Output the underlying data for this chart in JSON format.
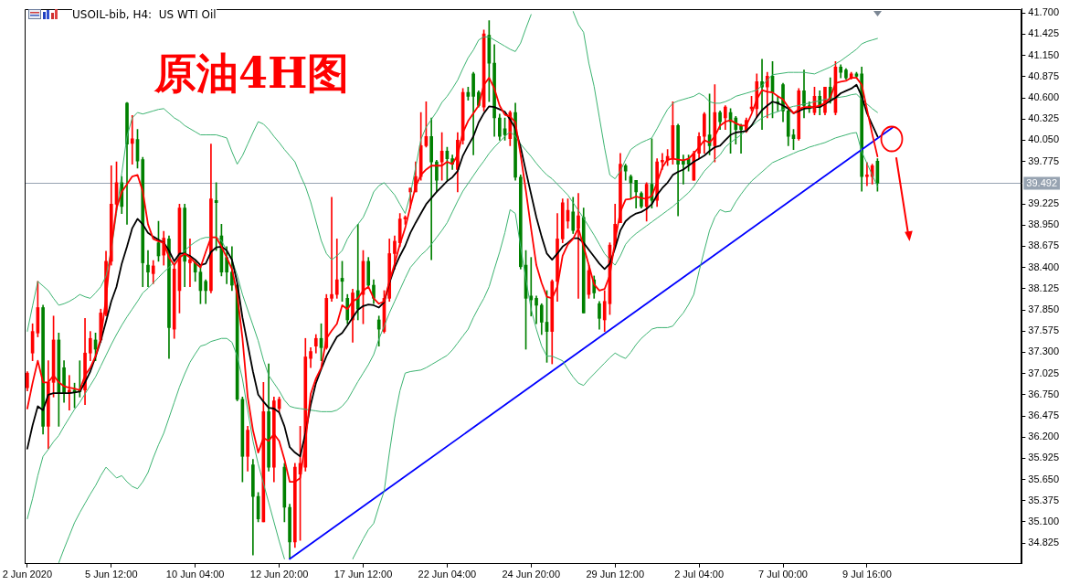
{
  "chart_data": {
    "type": "candlestick",
    "title": "原油4H图",
    "subtitle": "USOIL-bib, H4:  US WTI Oil",
    "categories": [
      "2 Jun 2020",
      null,
      null,
      null,
      null,
      null,
      null,
      null,
      null,
      null,
      null,
      null,
      null,
      null,
      null,
      null,
      "5 Jun 12:00",
      null,
      null,
      null,
      null,
      null,
      null,
      null,
      null,
      null,
      null,
      null,
      null,
      null,
      null,
      null,
      "10 Jun 04:00",
      null,
      null,
      null,
      null,
      null,
      null,
      null,
      null,
      null,
      null,
      null,
      null,
      null,
      null,
      null,
      "12 Jun 20:00",
      null,
      null,
      null,
      null,
      null,
      null,
      null,
      null,
      null,
      null,
      null,
      null,
      null,
      null,
      null,
      "17 Jun 12:00",
      null,
      null,
      null,
      null,
      null,
      null,
      null,
      null,
      null,
      null,
      null,
      null,
      null,
      null,
      null,
      "22 Jun 04:00",
      null,
      null,
      null,
      null,
      null,
      null,
      null,
      null,
      null,
      null,
      null,
      null,
      null,
      null,
      null,
      "24 Jun 20:00",
      null,
      null,
      null,
      null,
      null,
      null,
      null,
      null,
      null,
      null,
      null,
      null,
      null,
      null,
      null,
      "29 Jun 12:00",
      null,
      null,
      null,
      null,
      null,
      null,
      null,
      null,
      null,
      null,
      null,
      null,
      null,
      null,
      null,
      "2 Jul 04:00",
      null,
      null,
      null,
      null,
      null,
      null,
      null,
      null,
      null,
      null,
      null,
      null,
      null,
      null,
      null,
      "7 Jul 00:00",
      null,
      null,
      null,
      null,
      null,
      null,
      null,
      null,
      null,
      null,
      null,
      null,
      null,
      null,
      null,
      "9 Jul 16:00",
      null,
      null,
      null,
      null,
      null,
      null,
      null,
      null,
      null,
      null,
      null,
      null,
      null,
      null,
      null,
      null,
      null,
      null,
      null,
      null,
      null,
      null,
      null,
      null,
      null,
      null,
      null,
      null,
      null
    ],
    "ohlc": [
      [
        36.84,
        37.05,
        36.8,
        37.03
      ],
      [
        37.29,
        37.67,
        37.19,
        37.57
      ],
      [
        37.55,
        38.22,
        37.5,
        37.88
      ],
      [
        37.88,
        37.91,
        36.24,
        36.34
      ],
      [
        36.34,
        37.19,
        36.05,
        36.91
      ],
      [
        36.91,
        37.77,
        36.72,
        37.46
      ],
      [
        37.46,
        37.55,
        36.34,
        36.77
      ],
      [
        37.1,
        37.19,
        36.65,
        36.77
      ],
      [
        36.77,
        37.0,
        36.55,
        36.81
      ],
      [
        36.81,
        36.9,
        36.58,
        36.78
      ],
      [
        36.81,
        37.19,
        36.72,
        36.79
      ],
      [
        36.81,
        37.74,
        36.62,
        37.29
      ],
      [
        37.29,
        37.57,
        37.19,
        37.48
      ],
      [
        37.46,
        37.55,
        37.19,
        37.34
      ],
      [
        37.46,
        37.86,
        37.43,
        37.81
      ],
      [
        37.79,
        38.61,
        37.77,
        38.48
      ],
      [
        38.48,
        39.72,
        38.43,
        39.22
      ],
      [
        39.22,
        39.77,
        39.15,
        39.5
      ],
      [
        39.5,
        39.58,
        39.1,
        39.19
      ],
      [
        40.53,
        40.54,
        38.96,
        40.0
      ],
      [
        40.01,
        40.37,
        39.74,
        40.07
      ],
      [
        40.06,
        40.19,
        39.69,
        39.78
      ],
      [
        39.8,
        39.83,
        38.15,
        38.46
      ],
      [
        38.43,
        38.62,
        38.15,
        38.34
      ],
      [
        38.32,
        38.49,
        38.19,
        38.42
      ],
      [
        38.72,
        39.0,
        38.48,
        38.55
      ],
      [
        38.56,
        38.87,
        38.43,
        38.78
      ],
      [
        38.77,
        38.81,
        37.22,
        37.62
      ],
      [
        37.6,
        38.43,
        37.48,
        38.38
      ],
      [
        38.1,
        39.22,
        37.81,
        39.17
      ],
      [
        39.17,
        39.22,
        38.15,
        38.48
      ],
      [
        38.46,
        38.77,
        38.15,
        38.5
      ],
      [
        38.46,
        38.48,
        38.22,
        38.34
      ],
      [
        38.34,
        38.43,
        37.93,
        38.1
      ],
      [
        38.22,
        38.24,
        37.93,
        38.1
      ],
      [
        38.1,
        40.0,
        38.07,
        39.29
      ],
      [
        39.27,
        39.5,
        38.62,
        39.24
      ],
      [
        38.81,
        38.96,
        38.29,
        38.34
      ],
      [
        38.53,
        38.67,
        38.19,
        38.34
      ],
      [
        38.34,
        38.67,
        38.1,
        38.17
      ],
      [
        38.17,
        38.19,
        36.67,
        36.69
      ],
      [
        36.69,
        36.72,
        35.62,
        35.95
      ],
      [
        35.95,
        36.34,
        35.76,
        36.29
      ],
      [
        35.84,
        35.91,
        34.67,
        35.43
      ],
      [
        35.43,
        35.48,
        35.1,
        35.14
      ],
      [
        35.1,
        36.91,
        35.1,
        36.53
      ],
      [
        36.53,
        37.15,
        35.76,
        35.81
      ],
      [
        35.81,
        36.72,
        35.62,
        36.67
      ],
      [
        36.57,
        36.72,
        36.53,
        36.69
      ],
      [
        35.81,
        35.86,
        35.1,
        35.29
      ],
      [
        35.29,
        35.33,
        34.62,
        34.84
      ],
      [
        34.84,
        35.86,
        34.77,
        35.81
      ],
      [
        35.72,
        36.34,
        34.86,
        35.86
      ],
      [
        35.81,
        37.48,
        35.76,
        37.24
      ],
      [
        37.22,
        37.36,
        37.1,
        37.31
      ],
      [
        37.38,
        37.53,
        37.29,
        37.48
      ],
      [
        37.48,
        37.67,
        37.19,
        37.36
      ],
      [
        37.36,
        38.05,
        37.34,
        38.0
      ],
      [
        38.0,
        39.31,
        37.96,
        38.05
      ],
      [
        38.05,
        38.77,
        38.0,
        38.24
      ],
      [
        38.26,
        38.48,
        37.96,
        38.22
      ],
      [
        38.0,
        38.05,
        37.67,
        37.72
      ],
      [
        37.72,
        38.12,
        37.43,
        38.07
      ],
      [
        38.1,
        38.96,
        37.72,
        37.86
      ],
      [
        38.05,
        38.62,
        37.67,
        38.48
      ],
      [
        38.48,
        38.53,
        38.15,
        38.17
      ],
      [
        38.17,
        38.24,
        37.93,
        38.0
      ],
      [
        37.72,
        37.77,
        37.38,
        37.6
      ],
      [
        37.57,
        38.1,
        37.55,
        38.0
      ],
      [
        38.0,
        38.77,
        37.96,
        38.58
      ],
      [
        38.58,
        38.81,
        38.38,
        38.74
      ],
      [
        38.72,
        39.1,
        38.67,
        39.03
      ],
      [
        39.03,
        39.07,
        38.96,
        39.05
      ],
      [
        39.38,
        39.43,
        39.17,
        39.43
      ],
      [
        39.38,
        39.77,
        39.38,
        39.58
      ],
      [
        39.58,
        40.41,
        39.53,
        39.98
      ],
      [
        39.98,
        40.55,
        39.96,
        40.1
      ],
      [
        40.1,
        40.34,
        38.5,
        39.77
      ],
      [
        39.77,
        39.79,
        39.38,
        39.53
      ],
      [
        39.77,
        40.15,
        39.53,
        39.91
      ],
      [
        39.91,
        39.96,
        39.53,
        39.81
      ],
      [
        39.81,
        39.86,
        39.67,
        39.74
      ],
      [
        39.67,
        40.15,
        39.38,
        40.05
      ],
      [
        40.05,
        40.72,
        40.0,
        40.67
      ],
      [
        40.67,
        40.74,
        40.57,
        40.62
      ],
      [
        40.91,
        40.93,
        39.86,
        40.62
      ],
      [
        40.67,
        40.69,
        40.48,
        40.5
      ],
      [
        40.48,
        41.48,
        40.43,
        41.43
      ],
      [
        41.41,
        41.6,
        40.55,
        41.05
      ],
      [
        41.05,
        41.29,
        40.1,
        40.34
      ],
      [
        40.34,
        40.39,
        40.05,
        40.1
      ],
      [
        40.2,
        40.34,
        40.05,
        40.12
      ],
      [
        40.07,
        40.43,
        39.98,
        40.41
      ],
      [
        40.41,
        40.53,
        39.53,
        39.57
      ],
      [
        39.57,
        39.6,
        38.38,
        38.41
      ],
      [
        38.43,
        38.62,
        37.34,
        38.0
      ],
      [
        38.03,
        38.53,
        37.77,
        37.98
      ],
      [
        38.0,
        38.03,
        37.67,
        37.91
      ],
      [
        37.91,
        37.93,
        37.53,
        37.69
      ],
      [
        37.69,
        38.1,
        37.17,
        37.57
      ],
      [
        37.57,
        38.24,
        37.15,
        38.22
      ],
      [
        38.22,
        39.1,
        37.96,
        38.77
      ],
      [
        38.77,
        39.29,
        38.72,
        39.24
      ],
      [
        39.0,
        39.29,
        38.91,
        39.14
      ],
      [
        39.12,
        39.31,
        38.84,
        38.88
      ],
      [
        38.91,
        39.36,
        38.0,
        39.07
      ],
      [
        39.05,
        39.17,
        37.81,
        37.81
      ],
      [
        38.05,
        38.43,
        38.0,
        38.36
      ],
      [
        38.24,
        38.29,
        38.0,
        38.07
      ],
      [
        37.93,
        37.96,
        37.6,
        37.74
      ],
      [
        37.72,
        38.1,
        37.57,
        37.96
      ],
      [
        37.93,
        38.72,
        37.79,
        38.69
      ],
      [
        38.69,
        39.22,
        38.65,
        38.96
      ],
      [
        38.98,
        39.88,
        38.98,
        39.74
      ],
      [
        39.72,
        39.74,
        39.53,
        39.65
      ],
      [
        39.58,
        39.6,
        39.29,
        39.5
      ],
      [
        39.53,
        39.53,
        39.17,
        39.38
      ],
      [
        39.36,
        39.38,
        39.17,
        39.19
      ],
      [
        39.19,
        39.5,
        39.0,
        39.48
      ],
      [
        39.48,
        40.07,
        39.17,
        39.27
      ],
      [
        39.27,
        39.81,
        39.19,
        39.77
      ],
      [
        39.77,
        39.88,
        39.67,
        39.79
      ],
      [
        39.79,
        39.93,
        39.72,
        39.84
      ],
      [
        39.81,
        40.55,
        39.74,
        40.24
      ],
      [
        40.24,
        40.26,
        39.07,
        39.74
      ],
      [
        39.79,
        39.86,
        39.48,
        39.74
      ],
      [
        39.81,
        39.86,
        39.65,
        39.74
      ],
      [
        39.53,
        39.91,
        39.53,
        39.88
      ],
      [
        39.88,
        40.15,
        39.81,
        40.1
      ],
      [
        40.1,
        40.41,
        39.88,
        40.39
      ],
      [
        40.12,
        40.65,
        39.86,
        39.98
      ],
      [
        39.98,
        40.77,
        39.77,
        40.41
      ],
      [
        40.41,
        40.43,
        40.19,
        40.29
      ],
      [
        40.34,
        40.5,
        40.19,
        40.48
      ],
      [
        40.41,
        40.46,
        39.88,
        40.29
      ],
      [
        40.34,
        40.36,
        40.0,
        40.19
      ],
      [
        40.24,
        40.26,
        39.88,
        40.19
      ],
      [
        40.17,
        40.34,
        40.15,
        40.31
      ],
      [
        40.46,
        40.62,
        40.43,
        40.48
      ],
      [
        40.46,
        40.91,
        40.34,
        40.81
      ],
      [
        40.81,
        41.1,
        40.19,
        40.74
      ],
      [
        40.74,
        40.93,
        40.34,
        40.88
      ],
      [
        40.88,
        41.07,
        40.34,
        40.67
      ],
      [
        40.55,
        40.62,
        40.43,
        40.53
      ],
      [
        40.77,
        40.79,
        40.29,
        40.43
      ],
      [
        40.43,
        40.48,
        39.98,
        40.1
      ],
      [
        40.12,
        40.19,
        39.93,
        40.07
      ],
      [
        40.07,
        40.72,
        40.05,
        40.69
      ],
      [
        40.69,
        40.96,
        40.34,
        40.5
      ],
      [
        40.5,
        40.55,
        40.41,
        40.46
      ],
      [
        40.41,
        40.74,
        40.38,
        40.62
      ],
      [
        40.62,
        40.69,
        40.38,
        40.48
      ],
      [
        40.41,
        40.74,
        40.38,
        40.74
      ],
      [
        40.74,
        40.86,
        40.53,
        40.58
      ],
      [
        40.41,
        41.07,
        40.38,
        41.0
      ],
      [
        41.0,
        41.03,
        40.86,
        40.93
      ],
      [
        40.96,
        40.98,
        40.84,
        40.86
      ],
      [
        40.86,
        40.93,
        40.84,
        40.91
      ],
      [
        40.91,
        40.93,
        40.86,
        40.88
      ],
      [
        40.91,
        41.0,
        39.39,
        39.58
      ],
      [
        39.58,
        39.76,
        39.46,
        39.6
      ],
      [
        39.58,
        39.74,
        39.48,
        39.72
      ],
      [
        39.78,
        39.81,
        39.39,
        39.492
      ],
      null,
      null,
      null,
      null,
      null,
      null,
      null,
      null,
      null,
      null,
      null,
      null,
      null,
      null,
      null,
      null,
      null,
      null,
      null,
      null,
      null,
      null,
      null,
      null,
      null,
      null,
      null
    ],
    "colors": [
      "#ff0000",
      "#ff0000",
      "#ff0000",
      "#008000",
      "#ff0000",
      "#ff0000",
      "#008000",
      "#008000",
      "#ff0000",
      "#008000",
      "#008000",
      "#ff0000",
      "#ff0000",
      "#008000",
      "#ff0000",
      "#ff0000",
      "#ff0000",
      "#ff0000",
      "#008000",
      "#008000",
      "#ff0000",
      "#008000",
      "#008000",
      "#008000",
      "#ff0000",
      "#008000",
      "#ff0000",
      "#008000",
      "#ff0000",
      "#ff0000",
      "#008000",
      "#ff0000",
      "#008000",
      "#008000",
      "#008000",
      "#ff0000",
      "#008000",
      "#008000",
      "#008000",
      "#008000",
      "#008000",
      "#008000",
      "#ff0000",
      "#008000",
      "#008000",
      "#ff0000",
      "#008000",
      "#ff0000",
      "#ff0000",
      "#008000",
      "#008000",
      "#ff0000",
      "#ff0000",
      "#ff0000",
      "#ff0000",
      "#ff0000",
      "#008000",
      "#ff0000",
      "#ff0000",
      "#ff0000",
      "#008000",
      "#008000",
      "#ff0000",
      "#008000",
      "#ff0000",
      "#008000",
      "#008000",
      "#008000",
      "#ff0000",
      "#ff0000",
      "#ff0000",
      "#ff0000",
      "#ff0000",
      "#ff0000",
      "#ff0000",
      "#ff0000",
      "#ff0000",
      "#008000",
      "#008000",
      "#ff0000",
      "#008000",
      "#008000",
      "#ff0000",
      "#ff0000",
      "#008000",
      "#008000",
      "#008000",
      "#ff0000",
      "#008000",
      "#008000",
      "#008000",
      "#008000",
      "#ff0000",
      "#008000",
      "#008000",
      "#008000",
      "#008000",
      "#008000",
      "#008000",
      "#008000",
      "#ff0000",
      "#ff0000",
      "#ff0000",
      "#ff0000",
      "#008000",
      "#ff0000",
      "#008000",
      "#ff0000",
      "#008000",
      "#008000",
      "#ff0000",
      "#ff0000",
      "#ff0000",
      "#ff0000",
      "#008000",
      "#008000",
      "#008000",
      "#008000",
      "#ff0000",
      "#008000",
      "#ff0000",
      "#ff0000",
      "#ff0000",
      "#ff0000",
      "#008000",
      "#008000",
      "#008000",
      "#ff0000",
      "#ff0000",
      "#ff0000",
      "#008000",
      "#ff0000",
      "#008000",
      "#ff0000",
      "#008000",
      "#008000",
      "#008000",
      "#ff0000",
      "#ff0000",
      "#ff0000",
      "#008000",
      "#ff0000",
      "#008000",
      "#008000",
      "#008000",
      "#008000",
      "#008000",
      "#ff0000",
      "#008000",
      "#008000",
      "#ff0000",
      "#008000",
      "#ff0000",
      "#008000",
      "#ff0000",
      "#008000",
      "#008000",
      "#ff0000",
      "#008000",
      "#008000",
      "#ff0000",
      "#ff0000",
      "#008000",
      null,
      null,
      null,
      null,
      null,
      null,
      null,
      null,
      null,
      null,
      null,
      null,
      null,
      null,
      null,
      null,
      null,
      null,
      null,
      null,
      null,
      null,
      null,
      null,
      null,
      null,
      null
    ],
    "series": [
      {
        "type": "line",
        "color": "#ff0000",
        "values": [
          36.57,
          36.9,
          37.19,
          36.91,
          36.91,
          37.0,
          36.91,
          36.86,
          36.84,
          36.83,
          36.81,
          37.0,
          37.1,
          37.25,
          37.48,
          38.0,
          38.67,
          39.17,
          39.38,
          39.48,
          39.58,
          39.6,
          39.39,
          38.96,
          38.77,
          38.74,
          38.72,
          38.53,
          38.43,
          38.53,
          38.58,
          38.53,
          38.46,
          38.4,
          38.6,
          38.79,
          38.79,
          38.67,
          38.53,
          38.38,
          38.05,
          37.48,
          36.72,
          36.29,
          36.0,
          36.19,
          36.15,
          36.24,
          36.15,
          35.91,
          35.62,
          35.62,
          35.67,
          36.15,
          36.76,
          36.96,
          37.1,
          37.48,
          37.58,
          37.67,
          37.91,
          37.86,
          37.96,
          38.0,
          38.1,
          38.15,
          38.0,
          37.93,
          37.96,
          38.22,
          38.45,
          38.7,
          38.91,
          39.19,
          39.45,
          39.6,
          39.67,
          39.72,
          39.72,
          39.72,
          39.77,
          39.74,
          39.86,
          40.15,
          40.3,
          40.4,
          40.5,
          40.77,
          40.86,
          40.72,
          40.5,
          40.38,
          40.36,
          40.28,
          39.86,
          39.4,
          38.9,
          38.43,
          38.2,
          38.02,
          38.0,
          38.15,
          38.55,
          38.7,
          38.77,
          38.91,
          38.67,
          38.43,
          38.18,
          38.1,
          38.12,
          38.3,
          38.75,
          39.12,
          39.28,
          39.29,
          39.32,
          39.3,
          39.29,
          39.33,
          39.5,
          39.7,
          39.8,
          39.81,
          39.8,
          39.79,
          39.81,
          39.88,
          39.96,
          40.05,
          40.02,
          40.1,
          40.24,
          40.29,
          40.31,
          40.27,
          40.24,
          40.24,
          40.39,
          40.58,
          40.7,
          40.68,
          40.67,
          40.62,
          40.58,
          40.48,
          40.4,
          40.45,
          40.48,
          40.48,
          40.48,
          40.5,
          40.53,
          40.6,
          40.79,
          40.81,
          40.82,
          40.86,
          40.86,
          40.77,
          40.45,
          40.13,
          39.84,
          null,
          null,
          null,
          null,
          null,
          null,
          null,
          null,
          null,
          null,
          null,
          null,
          null,
          null,
          null,
          null,
          null,
          null,
          null,
          null,
          null,
          null,
          null,
          null,
          null,
          null,
          null
        ]
      },
      {
        "type": "line",
        "color": "#000000",
        "values": [
          36.05,
          36.35,
          36.6,
          36.55,
          36.75,
          36.77,
          36.77,
          36.77,
          36.77,
          36.78,
          36.79,
          36.91,
          37.05,
          37.24,
          37.45,
          37.7,
          37.96,
          38.15,
          38.45,
          38.67,
          38.91,
          39.03,
          38.96,
          38.85,
          38.8,
          38.76,
          38.72,
          38.62,
          38.48,
          38.58,
          38.58,
          38.55,
          38.5,
          38.43,
          38.45,
          38.6,
          38.66,
          38.67,
          38.62,
          38.5,
          38.2,
          37.75,
          37.4,
          37.05,
          36.75,
          36.66,
          36.58,
          36.57,
          36.52,
          36.34,
          36.07,
          36.0,
          35.95,
          36.25,
          36.62,
          36.9,
          37.08,
          37.25,
          37.38,
          37.5,
          37.55,
          37.65,
          37.75,
          37.85,
          37.9,
          37.92,
          37.91,
          37.88,
          37.95,
          38.2,
          38.4,
          38.55,
          38.68,
          38.85,
          38.98,
          39.1,
          39.22,
          39.3,
          39.38,
          39.45,
          39.52,
          39.57,
          39.65,
          39.85,
          39.98,
          40.1,
          40.28,
          40.4,
          40.49,
          40.48,
          40.45,
          40.42,
          40.32,
          40.2,
          39.96,
          39.65,
          39.35,
          39.05,
          38.8,
          38.58,
          38.5,
          38.58,
          38.67,
          38.72,
          38.78,
          38.78,
          38.72,
          38.63,
          38.54,
          38.45,
          38.38,
          38.45,
          38.65,
          38.88,
          39.0,
          39.06,
          39.1,
          39.12,
          39.16,
          39.22,
          39.34,
          39.43,
          39.5,
          39.6,
          39.64,
          39.67,
          39.72,
          39.77,
          39.81,
          39.85,
          39.91,
          39.96,
          39.98,
          40.05,
          40.12,
          40.15,
          40.16,
          40.17,
          40.24,
          40.35,
          40.44,
          40.5,
          40.55,
          40.53,
          40.5,
          40.46,
          40.4,
          40.43,
          40.46,
          40.47,
          40.48,
          40.48,
          40.52,
          40.56,
          40.6,
          40.66,
          40.69,
          40.72,
          40.77,
          40.62,
          40.4,
          40.25,
          40.1,
          null,
          null,
          null,
          null,
          null,
          null,
          null,
          null,
          null,
          null,
          null,
          null,
          null,
          null,
          null,
          null,
          null,
          null,
          null,
          null,
          null,
          null,
          null,
          null,
          null,
          null,
          null
        ]
      },
      {
        "type": "line",
        "color": "#3cb371",
        "values": [
          37.57,
          37.9,
          38.22,
          38.16,
          38.1,
          38.0,
          37.91,
          37.93,
          37.96,
          38.0,
          38.05,
          38.02,
          38.0,
          38.07,
          38.15,
          38.29,
          38.62,
          39.1,
          39.62,
          40.1,
          40.34,
          40.41,
          40.39,
          40.41,
          40.43,
          40.45,
          40.46,
          40.4,
          40.34,
          40.3,
          40.24,
          40.2,
          40.16,
          40.12,
          40.12,
          40.12,
          40.12,
          40.1,
          40.08,
          39.9,
          39.74,
          39.85,
          40.0,
          40.15,
          40.29,
          40.26,
          40.19,
          40.1,
          40.02,
          39.93,
          39.85,
          39.77,
          39.6,
          39.45,
          39.25,
          39.0,
          38.75,
          38.58,
          38.5,
          38.55,
          38.62,
          38.77,
          38.88,
          38.96,
          39.05,
          39.2,
          39.38,
          39.46,
          39.5,
          39.42,
          39.34,
          39.22,
          39.1,
          39.35,
          39.7,
          40.06,
          40.22,
          40.32,
          40.42,
          40.54,
          40.62,
          40.72,
          40.83,
          40.98,
          41.12,
          41.22,
          41.35,
          41.39,
          41.39,
          41.35,
          41.31,
          41.27,
          41.23,
          41.2,
          41.31,
          41.5,
          41.68,
          null,
          null,
          null,
          null,
          null,
          null,
          null,
          41.72,
          41.55,
          41.45,
          41.05,
          40.75,
          40.35,
          39.95,
          39.6,
          39.55,
          39.65,
          39.8,
          39.93,
          39.98,
          40.02,
          40.05,
          40.08,
          40.2,
          40.33,
          40.45,
          40.53,
          40.56,
          40.58,
          40.6,
          40.62,
          40.66,
          40.62,
          40.55,
          40.53,
          40.53,
          40.55,
          40.58,
          40.62,
          40.64,
          40.66,
          40.68,
          40.7,
          40.76,
          40.83,
          40.9,
          40.91,
          40.92,
          40.93,
          40.93,
          40.93,
          40.93,
          40.92,
          40.91,
          40.94,
          40.97,
          41.0,
          41.04,
          41.08,
          41.13,
          41.18,
          41.23,
          41.3,
          41.33,
          41.35,
          41.37,
          null,
          null,
          null,
          null,
          null,
          null,
          null,
          null,
          null,
          null,
          null,
          null,
          null,
          null,
          null,
          null,
          null,
          null,
          null,
          null,
          null,
          null,
          null,
          null,
          null,
          null,
          null
        ]
      },
      {
        "type": "line",
        "color": "#3cb371",
        "values": [
          35.14,
          35.4,
          35.7,
          35.95,
          36.04,
          36.14,
          36.22,
          36.34,
          36.45,
          36.56,
          36.65,
          36.76,
          36.87,
          36.98,
          37.12,
          37.26,
          37.4,
          37.53,
          37.65,
          37.76,
          37.86,
          37.96,
          38.07,
          38.13,
          38.2,
          38.27,
          38.34,
          38.4,
          38.47,
          38.55,
          38.62,
          38.68,
          38.73,
          38.77,
          38.79,
          38.79,
          38.79,
          38.75,
          38.62,
          38.5,
          38.3,
          38.05,
          37.85,
          37.65,
          37.45,
          37.2,
          37.0,
          36.9,
          36.8,
          36.68,
          36.6,
          36.58,
          36.57,
          36.56,
          36.55,
          36.54,
          36.53,
          36.53,
          36.53,
          36.55,
          36.6,
          36.68,
          36.8,
          36.92,
          37.03,
          37.14,
          37.27,
          37.47,
          37.64,
          37.81,
          37.96,
          38.11,
          38.26,
          38.4,
          38.48,
          38.56,
          38.62,
          38.7,
          38.79,
          38.88,
          38.98,
          39.12,
          39.26,
          39.39,
          39.49,
          39.59,
          39.69,
          39.78,
          39.88,
          39.96,
          40.03,
          40.1,
          40.16,
          40.1,
          40.0,
          39.92,
          39.84,
          39.75,
          39.67,
          39.6,
          39.55,
          39.48,
          39.41,
          39.34,
          39.24,
          39.14,
          39.04,
          38.93,
          38.82,
          38.7,
          38.58,
          38.5,
          38.43,
          38.55,
          38.7,
          38.78,
          38.84,
          38.89,
          38.94,
          38.99,
          39.04,
          39.09,
          39.14,
          39.19,
          39.25,
          39.31,
          39.37,
          39.45,
          39.55,
          39.65,
          39.72,
          39.8,
          39.86,
          39.96,
          40.02,
          40.07,
          40.12,
          40.18,
          40.23,
          40.29,
          40.34,
          40.37,
          40.4,
          40.42,
          40.45,
          40.47,
          40.49,
          40.5,
          40.52,
          40.53,
          40.55,
          40.56,
          40.58,
          40.59,
          40.6,
          40.61,
          40.62,
          40.64,
          40.65,
          40.58,
          40.52,
          40.46,
          40.41,
          null,
          null,
          null,
          null,
          null,
          null,
          null,
          null,
          null,
          null,
          null,
          null,
          null,
          null,
          null,
          null,
          null,
          null,
          null,
          null,
          null,
          null,
          null,
          null,
          null,
          null,
          null
        ]
      },
      {
        "type": "line",
        "color": "#3cb371",
        "values": [
          null,
          null,
          null,
          null,
          null,
          null,
          34.57,
          34.75,
          34.92,
          35.09,
          35.22,
          35.34,
          35.46,
          35.57,
          35.7,
          35.81,
          35.74,
          35.67,
          35.7,
          35.62,
          35.56,
          35.53,
          35.62,
          35.74,
          35.93,
          36.1,
          36.25,
          36.45,
          36.65,
          36.85,
          37.02,
          37.17,
          37.28,
          37.38,
          37.4,
          37.44,
          37.46,
          37.48,
          37.48,
          37.43,
          37.25,
          36.95,
          36.55,
          36.15,
          35.85,
          35.6,
          35.35,
          35.1,
          34.85,
          34.62,
          null,
          null,
          null,
          null,
          null,
          null,
          null,
          null,
          null,
          null,
          null,
          null,
          34.62,
          34.75,
          34.88,
          35.0,
          35.08,
          35.3,
          35.5,
          36.0,
          36.45,
          36.8,
          37.03,
          37.05,
          37.06,
          37.07,
          37.1,
          37.14,
          37.18,
          37.22,
          37.26,
          37.33,
          37.42,
          37.51,
          37.6,
          37.75,
          37.88,
          38.0,
          38.15,
          38.38,
          38.6,
          38.85,
          39.15,
          39.1,
          38.67,
          38.25,
          37.86,
          37.6,
          37.38,
          37.25,
          37.25,
          37.22,
          37.19,
          37.08,
          36.98,
          36.9,
          36.87,
          36.95,
          37.02,
          37.09,
          37.16,
          37.23,
          37.29,
          37.25,
          37.22,
          37.3,
          37.4,
          37.48,
          37.54,
          37.6,
          37.62,
          37.62,
          37.62,
          37.64,
          37.73,
          37.81,
          37.92,
          38.05,
          38.35,
          38.62,
          38.88,
          39.05,
          39.15,
          39.12,
          39.13,
          39.25,
          39.35,
          39.44,
          39.52,
          39.58,
          39.64,
          39.7,
          39.76,
          39.79,
          39.82,
          39.85,
          39.88,
          39.91,
          39.93,
          39.96,
          39.98,
          40.0,
          40.02,
          40.05,
          40.08,
          40.1,
          40.12,
          40.14,
          40.15,
          39.9,
          39.75,
          39.6,
          39.45,
          null,
          null,
          null,
          null,
          null,
          null,
          null,
          null,
          null,
          null,
          null,
          null,
          null,
          null,
          null,
          null,
          null,
          null,
          null,
          null,
          null,
          null,
          null,
          null,
          null,
          null,
          null
        ]
      },
      {
        "type": "line",
        "color": "#0000ff",
        "values": [
          null,
          null,
          null,
          null,
          null,
          null,
          null,
          null,
          null,
          null,
          null,
          null,
          null,
          null,
          null,
          null,
          null,
          null,
          null,
          null,
          null,
          null,
          null,
          null,
          null,
          null,
          null,
          null,
          null,
          null,
          null,
          null,
          null,
          null,
          null,
          null,
          null,
          null,
          null,
          null,
          null,
          null,
          null,
          null,
          null,
          null,
          null,
          null,
          null,
          null,
          34.62,
          null,
          null,
          null,
          null,
          null,
          null,
          null,
          null,
          null,
          null,
          null,
          null,
          null,
          null,
          null,
          null,
          null,
          null,
          null,
          null,
          null,
          null,
          null,
          null,
          null,
          null,
          null,
          null,
          null,
          null,
          null,
          null,
          null,
          null,
          null,
          null,
          null,
          null,
          null,
          null,
          null,
          null,
          null,
          null,
          null,
          null,
          null,
          null,
          null,
          null,
          null,
          null,
          null,
          null,
          null,
          null,
          null,
          null,
          null,
          null,
          null,
          null,
          null,
          null,
          null,
          null,
          null,
          null,
          null,
          null,
          null,
          null,
          null,
          null,
          null,
          null,
          null,
          null,
          null,
          null,
          null,
          null,
          null,
          null,
          null,
          null,
          null,
          null,
          null,
          null,
          null,
          null,
          null,
          null,
          null,
          null,
          null,
          null,
          null,
          null,
          null,
          null,
          null,
          null,
          null,
          null,
          null,
          null,
          null,
          null,
          null,
          null,
          null,
          null,
          40.22,
          null,
          null,
          null,
          null,
          null,
          null,
          null,
          null,
          null,
          null,
          null,
          null,
          null,
          null,
          null,
          null,
          null,
          null,
          null,
          null,
          null,
          null,
          null,
          null
        ]
      }
    ],
    "ylim": [
      34.557,
      41.755
    ],
    "yticks": [
      {
        "value": 41.7,
        "label": "41.700"
      },
      41.425,
      {
        "value": 41.15,
        "label": "41.150"
      },
      40.875,
      {
        "value": 40.6,
        "label": "40.600"
      },
      40.325,
      {
        "value": 40.05,
        "label": "40.050"
      },
      39.775,
      39.225,
      {
        "value": 38.95,
        "label": "38.950"
      },
      38.675,
      {
        "value": 38.4,
        "label": "38.400"
      },
      38.125,
      {
        "value": 37.85,
        "label": "37.850"
      },
      37.575,
      {
        "value": 37.3,
        "label": "37.300"
      },
      37.025,
      {
        "value": 36.75,
        "label": "36.750"
      },
      36.475,
      {
        "value": 36.2,
        "label": "36.200"
      },
      35.925,
      {
        "value": 35.65,
        "label": "35.650"
      },
      35.375,
      {
        "value": 35.1,
        "label": "35.100"
      },
      34.825
    ],
    "ref_lines": [
      {
        "axis": "y",
        "value": 39.492,
        "label": "39.492",
        "color": "#97a3b1"
      }
    ]
  }
}
